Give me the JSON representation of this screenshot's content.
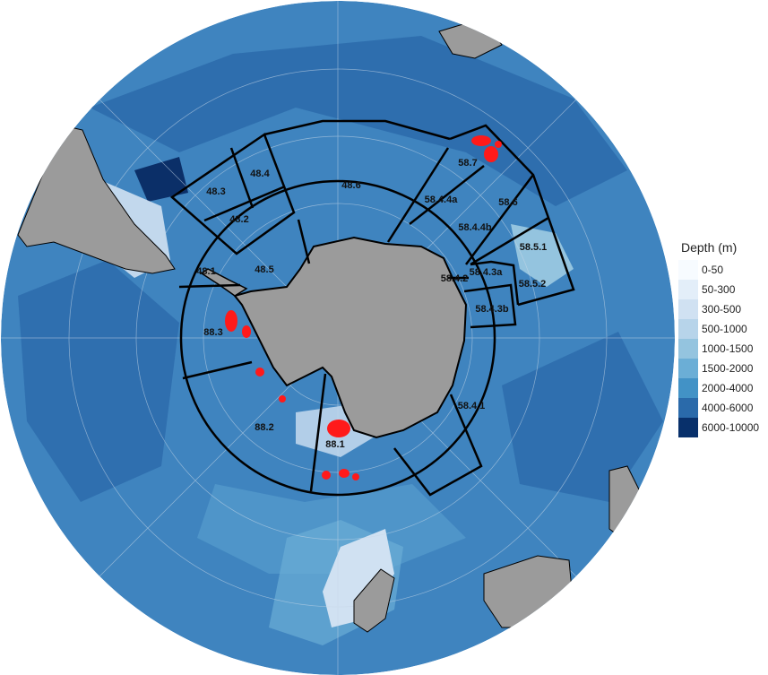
{
  "legend": {
    "title": "Depth (m)",
    "items": [
      {
        "label": "0-50",
        "color": "#f7fbff"
      },
      {
        "label": "50-300",
        "color": "#e3eef9"
      },
      {
        "label": "300-500",
        "color": "#d0e1f2"
      },
      {
        "label": "500-1000",
        "color": "#b7d4ea"
      },
      {
        "label": "1000-1500",
        "color": "#94c4df"
      },
      {
        "label": "1500-2000",
        "color": "#6baed6"
      },
      {
        "label": "2000-4000",
        "color": "#4292c6"
      },
      {
        "label": "4000-6000",
        "color": "#2a6aaa"
      },
      {
        "label": "6000-10000",
        "color": "#08306b"
      }
    ]
  },
  "areas": [
    "48.3",
    "48.4",
    "48.2",
    "48.1",
    "48.5",
    "48.6",
    "58.4.4a",
    "58.7",
    "58.6",
    "58.4.4b",
    "58.5.1",
    "58.4.2",
    "58.4.3a",
    "58.5.2",
    "58.4.3b",
    "58.4.1",
    "88.3",
    "88.2",
    "88.1"
  ],
  "colors": {
    "land": "#9b9b9b",
    "points": "#ff1a1a",
    "boundary": "#000000"
  }
}
